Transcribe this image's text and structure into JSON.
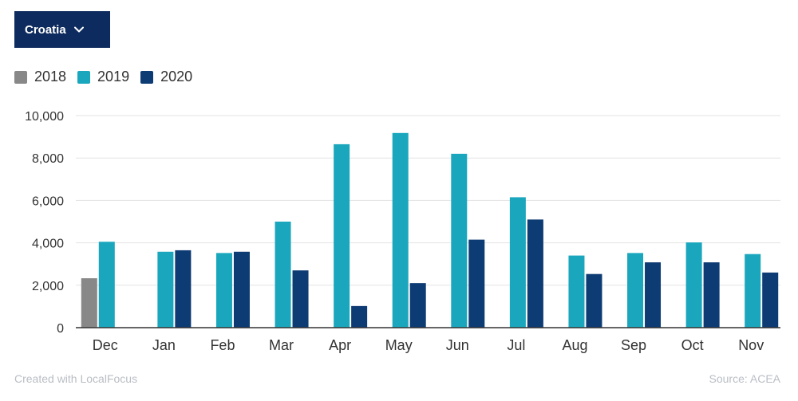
{
  "selector": {
    "label": "Croatia",
    "icon": "chevron-down-icon"
  },
  "chart_data": {
    "type": "bar",
    "categories": [
      "Dec",
      "Jan",
      "Feb",
      "Mar",
      "Apr",
      "May",
      "Jun",
      "Jul",
      "Aug",
      "Sep",
      "Oct",
      "Nov"
    ],
    "series": [
      {
        "name": "2018",
        "color": "#888888",
        "values": [
          2330,
          null,
          null,
          null,
          null,
          null,
          null,
          null,
          null,
          null,
          null,
          null
        ]
      },
      {
        "name": "2019",
        "color": "#1aa7bd",
        "values": [
          4050,
          3580,
          3520,
          5000,
          8650,
          9180,
          8200,
          6150,
          3400,
          3520,
          4020,
          3470
        ]
      },
      {
        "name": "2020",
        "color": "#0d3b73",
        "values": [
          null,
          3650,
          3580,
          2700,
          1020,
          2100,
          4150,
          5100,
          2530,
          3080,
          3080,
          2600
        ]
      }
    ],
    "yticks": [
      "0",
      "2,000",
      "4,000",
      "6,000",
      "8,000",
      "10,000"
    ],
    "ylim": [
      0,
      10000
    ],
    "grid": true,
    "legend": "top-left"
  },
  "footer": {
    "credit": "Created with LocalFocus",
    "source": "Source: ACEA"
  }
}
